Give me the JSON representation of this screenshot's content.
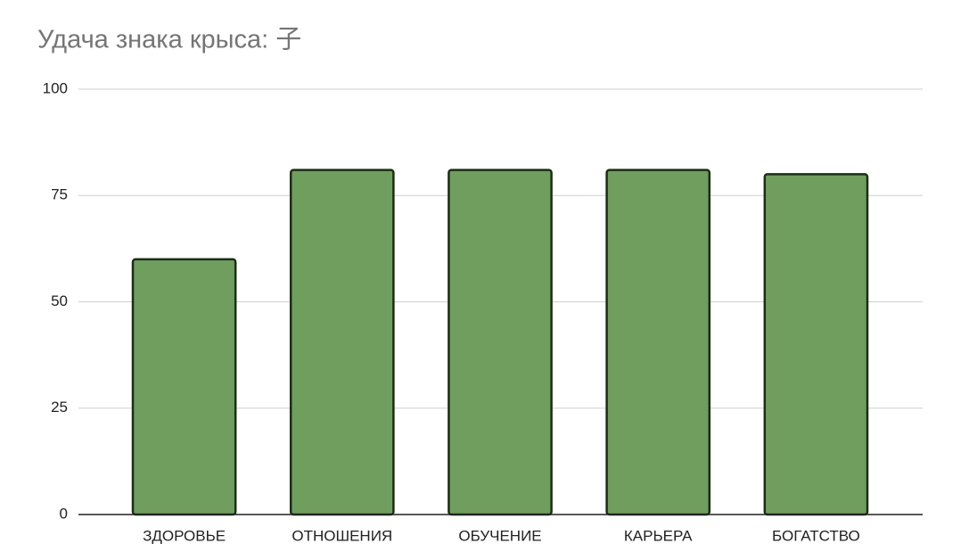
{
  "chart_data": {
    "type": "bar",
    "title": "Удача знака крыса: 子",
    "categories": [
      "ЗДОРОВЬЕ",
      "ОТНОШЕНИЯ",
      "ОБУЧЕНИЕ",
      "КАРЬЕРА",
      "БОГАТСТВО"
    ],
    "values": [
      60,
      81,
      81,
      81,
      80
    ],
    "color": "#6f9e5f",
    "ylim": [
      0,
      100
    ],
    "yticks": [
      0,
      25,
      50,
      75,
      100
    ],
    "grid": true
  }
}
